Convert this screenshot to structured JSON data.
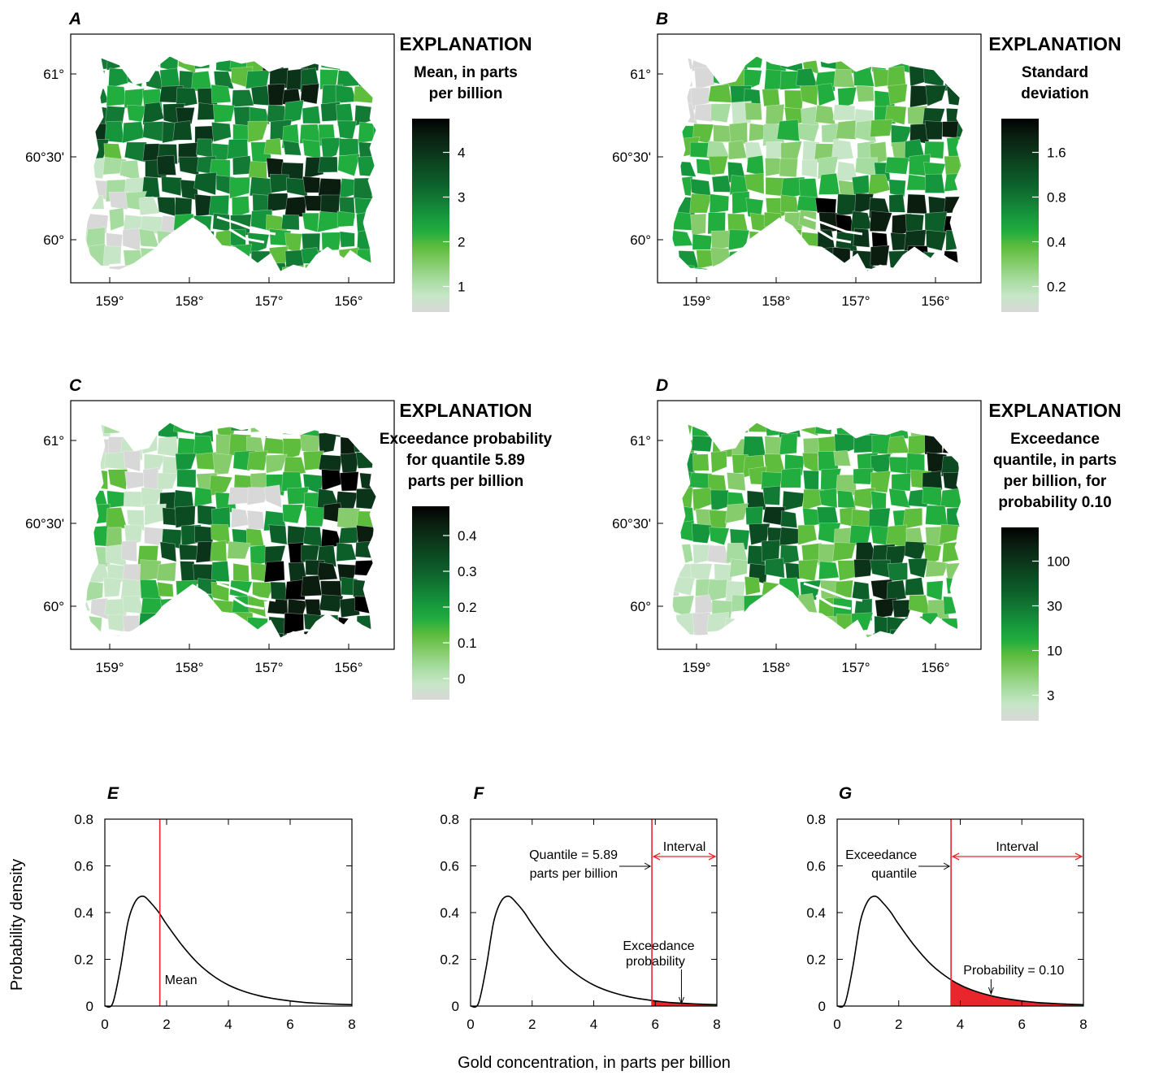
{
  "maps": [
    {
      "id": "A",
      "letter": "A",
      "explanation": "EXPLANATION",
      "legend_lines": [
        "Mean, in parts",
        "per billion"
      ],
      "legend_ticks": [
        "4",
        "3",
        "2",
        "1"
      ],
      "seed": 11,
      "bias": "mean"
    },
    {
      "id": "B",
      "letter": "B",
      "explanation": "EXPLANATION",
      "legend_lines": [
        "Standard",
        "deviation"
      ],
      "legend_ticks": [
        "1.6",
        "0.8",
        "0.4",
        "0.2"
      ],
      "seed": 23,
      "bias": "sd"
    },
    {
      "id": "C",
      "letter": "C",
      "explanation": "EXPLANATION",
      "legend_lines": [
        "Exceedance probability",
        "for quantile 5.89",
        "parts per billion"
      ],
      "legend_ticks": [
        "0.4",
        "0.3",
        "0.2",
        "0.1",
        "0"
      ],
      "seed": 37,
      "bias": "prob"
    },
    {
      "id": "D",
      "letter": "D",
      "explanation": "EXPLANATION",
      "legend_lines": [
        "Exceedance",
        "quantile, in parts",
        "per billion, for",
        "probability 0.10"
      ],
      "legend_ticks": [
        "100",
        "30",
        "10",
        "3"
      ],
      "seed": 53,
      "bias": "quant"
    }
  ],
  "map_axes": {
    "lat_labels": [
      "61°",
      "60°30'",
      "60°"
    ],
    "lon_labels": [
      "159°",
      "158°",
      "157°",
      "156°"
    ]
  },
  "colors": {
    "palette": [
      "#d8d8d8",
      "#c7e6c7",
      "#a6dca0",
      "#86cc6c",
      "#5fbd3e",
      "#22ad3f",
      "#16963c",
      "#127a34",
      "#0d5f2a",
      "#0c4a22",
      "#0b3319",
      "#0a1d0f",
      "#000000"
    ],
    "red": "#e8262c"
  },
  "chart_data": [
    {
      "id": "E",
      "type": "line",
      "letter": "E",
      "distribution": "lognormal",
      "x": [
        0,
        0.25,
        0.5,
        0.75,
        1,
        1.25,
        1.5,
        1.75,
        2,
        2.5,
        3,
        3.5,
        4,
        4.5,
        5,
        5.5,
        6,
        6.5,
        7,
        7.5,
        8
      ],
      "y": [
        0,
        0.01,
        0.16,
        0.36,
        0.45,
        0.47,
        0.44,
        0.4,
        0.35,
        0.26,
        0.185,
        0.13,
        0.09,
        0.063,
        0.044,
        0.031,
        0.022,
        0.015,
        0.011,
        0.008,
        0.006
      ],
      "xlim": [
        0,
        8
      ],
      "ylim": [
        0,
        0.8
      ],
      "xticks": [
        "0",
        "2",
        "4",
        "6",
        "8"
      ],
      "yticks": [
        "0",
        "0.2",
        "0.4",
        "0.6",
        "0.8"
      ],
      "marker_x": 1.78,
      "labels": {
        "mean": "Mean"
      }
    },
    {
      "id": "F",
      "type": "line",
      "letter": "F",
      "x": [
        0,
        0.25,
        0.5,
        0.75,
        1,
        1.25,
        1.5,
        1.75,
        2,
        2.5,
        3,
        3.5,
        4,
        4.5,
        5,
        5.5,
        6,
        6.5,
        7,
        7.5,
        8
      ],
      "y": [
        0,
        0.01,
        0.16,
        0.36,
        0.45,
        0.47,
        0.44,
        0.4,
        0.35,
        0.26,
        0.185,
        0.13,
        0.09,
        0.063,
        0.044,
        0.031,
        0.022,
        0.015,
        0.011,
        0.008,
        0.006
      ],
      "xlim": [
        0,
        8
      ],
      "ylim": [
        0,
        0.8
      ],
      "xticks": [
        "0",
        "2",
        "4",
        "6",
        "8"
      ],
      "yticks": [
        "0",
        "0.2",
        "0.4",
        "0.6",
        "0.8"
      ],
      "marker_x": 5.89,
      "labels": {
        "quantile_1": "Quantile = 5.89",
        "quantile_2": "parts per billion",
        "interval": "Interval",
        "exceed_1": "Exceedance",
        "exceed_2": "probability"
      }
    },
    {
      "id": "G",
      "type": "line",
      "letter": "G",
      "x": [
        0,
        0.25,
        0.5,
        0.75,
        1,
        1.25,
        1.5,
        1.75,
        2,
        2.5,
        3,
        3.5,
        4,
        4.5,
        5,
        5.5,
        6,
        6.5,
        7,
        7.5,
        8
      ],
      "y": [
        0,
        0.01,
        0.16,
        0.36,
        0.45,
        0.47,
        0.44,
        0.4,
        0.35,
        0.26,
        0.185,
        0.13,
        0.09,
        0.063,
        0.044,
        0.031,
        0.022,
        0.015,
        0.011,
        0.008,
        0.006
      ],
      "xlim": [
        0,
        8
      ],
      "ylim": [
        0,
        0.8
      ],
      "xticks": [
        "0",
        "2",
        "4",
        "6",
        "8"
      ],
      "yticks": [
        "0",
        "0.2",
        "0.4",
        "0.6",
        "0.8"
      ],
      "marker_x": 3.7,
      "labels": {
        "quantile_1": "Exceedance",
        "quantile_2": "quantile",
        "interval": "Interval",
        "prob": "Probability = 0.10"
      }
    }
  ],
  "shared": {
    "ylabel": "Probability density",
    "xlabel": "Gold concentration, in parts per billion"
  }
}
